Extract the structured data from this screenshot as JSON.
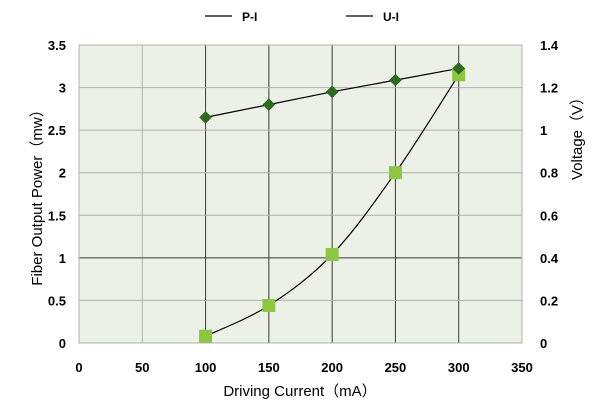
{
  "chart_data": {
    "type": "line",
    "title": "",
    "xlabel": "Driving Current（mA）",
    "ylabel_left": "Fiber Output Power（mw）",
    "ylabel_right": "Voltage（V）",
    "xlim": [
      0,
      350
    ],
    "ylim_left": [
      0,
      3.5
    ],
    "ylim_right": [
      0,
      1.4
    ],
    "x_ticks": [
      "0",
      "50",
      "100",
      "150",
      "200",
      "250",
      "300",
      "350"
    ],
    "y_left_ticks": [
      "0",
      "0.5",
      "1",
      "1.5",
      "2",
      "2.5",
      "3",
      "3.5"
    ],
    "y_right_ticks": [
      "0",
      "0.2",
      "0.4",
      "0.6",
      "0.8",
      "1",
      "1.2",
      "1.4"
    ],
    "grid": true,
    "legend_position": "top",
    "series": [
      {
        "name": "P-I",
        "axis": "left",
        "marker": "square",
        "color": "#8dc63f",
        "line_color": "#000000",
        "x": [
          100,
          150,
          200,
          250,
          300
        ],
        "values": [
          0.08,
          0.44,
          1.04,
          2.0,
          3.15
        ]
      },
      {
        "name": "U-I",
        "axis": "right",
        "marker": "diamond",
        "color": "#2e6b1f",
        "line_color": "#000000",
        "x": [
          100,
          150,
          200,
          250,
          300
        ],
        "values": [
          1.06,
          1.12,
          1.18,
          1.235,
          1.29
        ]
      }
    ]
  }
}
